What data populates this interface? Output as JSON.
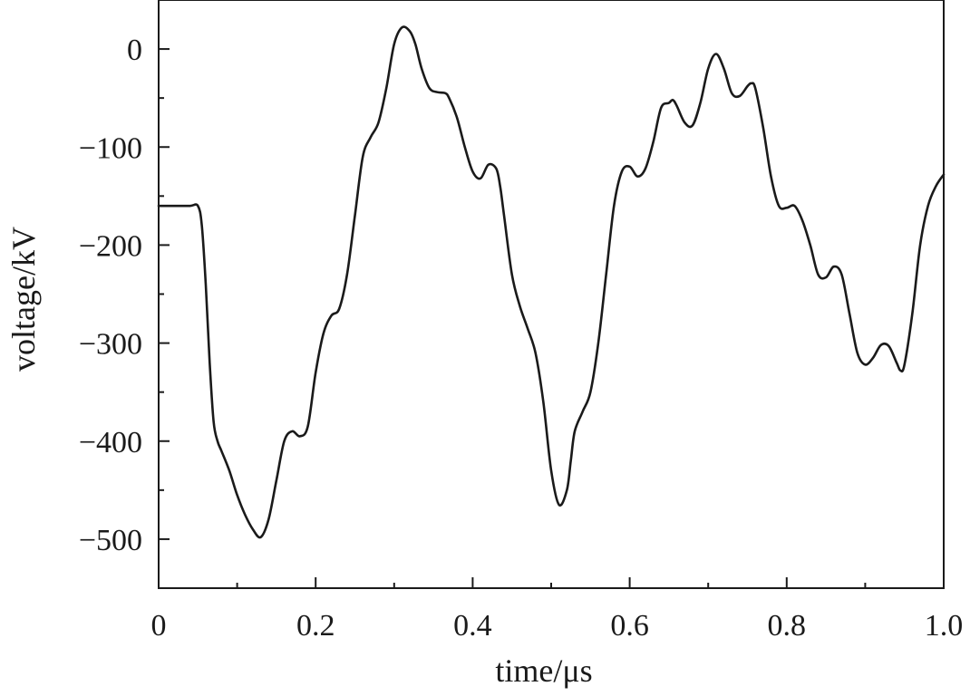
{
  "chart_data": {
    "type": "line",
    "title": "",
    "xlabel": "time/μs",
    "ylabel": "voltage/kV",
    "xlim": [
      0,
      1.0
    ],
    "ylim": [
      -550,
      50
    ],
    "x_ticks": [
      0,
      0.2,
      0.4,
      0.6,
      0.8,
      1.0
    ],
    "x_tick_labels": [
      "0",
      "0.2",
      "0.4",
      "0.6",
      "0.8",
      "1.0"
    ],
    "y_ticks": [
      0,
      -100,
      -200,
      -300,
      -400,
      -500
    ],
    "y_tick_labels": [
      "0",
      "−100",
      "−200",
      "−300",
      "−400",
      "−500"
    ],
    "grid": false,
    "series": [
      {
        "color": "#1a1a1a",
        "x": [
          0,
          0.02,
          0.04,
          0.05,
          0.055,
          0.06,
          0.065,
          0.07,
          0.075,
          0.08,
          0.09,
          0.1,
          0.11,
          0.12,
          0.13,
          0.14,
          0.15,
          0.16,
          0.17,
          0.18,
          0.19,
          0.2,
          0.21,
          0.22,
          0.23,
          0.24,
          0.25,
          0.26,
          0.27,
          0.28,
          0.29,
          0.3,
          0.31,
          0.32,
          0.327,
          0.335,
          0.345,
          0.355,
          0.365,
          0.37,
          0.38,
          0.39,
          0.4,
          0.41,
          0.42,
          0.43,
          0.435,
          0.44,
          0.45,
          0.46,
          0.47,
          0.48,
          0.49,
          0.5,
          0.51,
          0.52,
          0.525,
          0.53,
          0.54,
          0.55,
          0.56,
          0.57,
          0.58,
          0.59,
          0.6,
          0.61,
          0.62,
          0.63,
          0.64,
          0.65,
          0.655,
          0.66,
          0.67,
          0.68,
          0.69,
          0.7,
          0.71,
          0.72,
          0.73,
          0.74,
          0.75,
          0.755,
          0.76,
          0.77,
          0.78,
          0.79,
          0.8,
          0.81,
          0.82,
          0.83,
          0.84,
          0.85,
          0.86,
          0.87,
          0.88,
          0.89,
          0.9,
          0.91,
          0.92,
          0.93,
          0.94,
          0.945,
          0.95,
          0.96,
          0.97,
          0.98,
          0.99,
          1.0
        ],
        "y": [
          -160,
          -160,
          -160,
          -160,
          -180,
          -240,
          -320,
          -380,
          -400,
          -410,
          -430,
          -455,
          -475,
          -490,
          -498,
          -480,
          -440,
          -400,
          -390,
          -395,
          -385,
          -330,
          -290,
          -272,
          -265,
          -230,
          -170,
          -110,
          -90,
          -75,
          -40,
          5,
          22,
          18,
          5,
          -20,
          -40,
          -44,
          -45,
          -50,
          -70,
          -100,
          -125,
          -132,
          -118,
          -122,
          -140,
          -170,
          -230,
          -262,
          -285,
          -310,
          -360,
          -430,
          -465,
          -450,
          -420,
          -390,
          -370,
          -350,
          -300,
          -230,
          -160,
          -125,
          -120,
          -130,
          -122,
          -95,
          -60,
          -55,
          -52,
          -58,
          -75,
          -78,
          -55,
          -20,
          -5,
          -20,
          -45,
          -48,
          -38,
          -35,
          -40,
          -80,
          -130,
          -160,
          -162,
          -160,
          -175,
          -200,
          -230,
          -233,
          -222,
          -230,
          -270,
          -310,
          -322,
          -315,
          -302,
          -303,
          -320,
          -328,
          -322,
          -270,
          -200,
          -160,
          -140,
          -128
        ]
      }
    ]
  }
}
